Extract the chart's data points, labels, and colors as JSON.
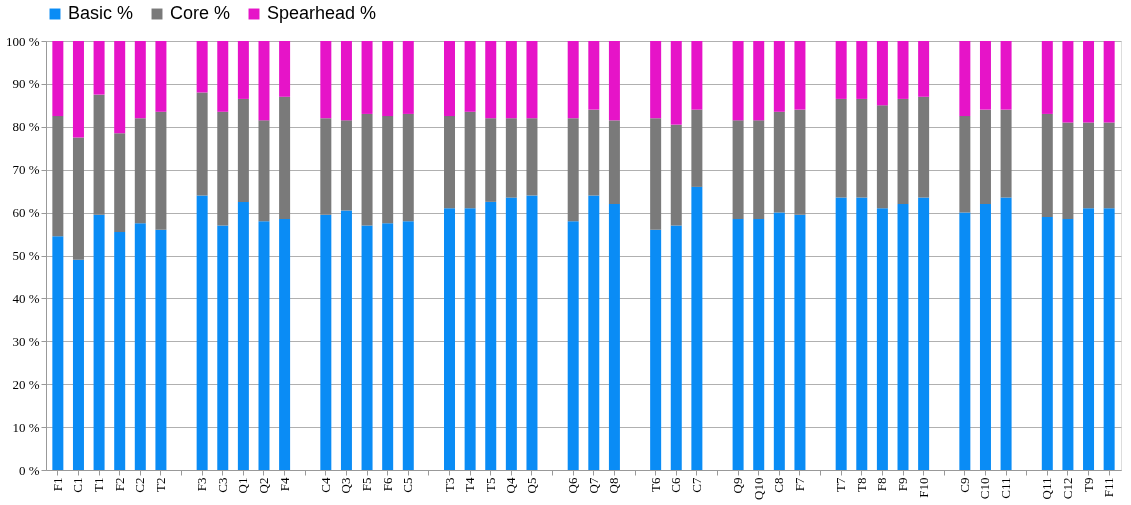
{
  "chart_data": {
    "type": "bar",
    "stacked": true,
    "legend": "top",
    "grid": "y",
    "categories": [
      "F1",
      "C1",
      "T1",
      "F2",
      "C2",
      "T2",
      null,
      "F3",
      "C3",
      "Q1",
      "Q2",
      "F4",
      null,
      "C4",
      "Q3",
      "F5",
      "F6",
      "C5",
      null,
      "T3",
      "T4",
      "T5",
      "Q4",
      "Q5",
      null,
      "Q6",
      "Q7",
      "Q8",
      null,
      "T6",
      "C6",
      "C7",
      null,
      "Q9",
      "Q10",
      "C8",
      "F7",
      null,
      "T7",
      "T8",
      "F8",
      "F9",
      "F10",
      null,
      "C9",
      "C10",
      "C11",
      null,
      "Q11",
      "C12",
      "T9",
      "F11"
    ],
    "series": [
      {
        "name": "Basic %",
        "color": "#0a8cf5",
        "values": [
          54.5,
          49,
          59.5,
          55.5,
          57.5,
          56,
          null,
          64,
          57,
          62.5,
          58,
          58.5,
          null,
          59.5,
          60.5,
          57,
          57.5,
          58,
          null,
          61,
          61,
          62.5,
          63.5,
          64,
          null,
          58,
          64,
          62,
          null,
          56,
          57,
          66,
          null,
          58.5,
          58.5,
          60,
          59.5,
          null,
          63.5,
          63.5,
          61,
          62,
          63.5,
          null,
          60,
          62,
          63.5,
          null,
          59,
          58.5,
          61,
          61
        ]
      },
      {
        "name": "Core %",
        "color": "#7a7a7a",
        "values": [
          28,
          28.5,
          28,
          23,
          24.5,
          27.5,
          null,
          24,
          26.5,
          24,
          23.5,
          28.5,
          null,
          22.5,
          21,
          26,
          25,
          25,
          null,
          21.5,
          22.5,
          19.5,
          18.5,
          18,
          null,
          24,
          20,
          19.5,
          null,
          26,
          23.5,
          18,
          null,
          23,
          23,
          23.5,
          24.5,
          null,
          23,
          23,
          24,
          24.5,
          23.5,
          null,
          22.5,
          22,
          20.5,
          null,
          24,
          22.5,
          20,
          20
        ]
      },
      {
        "name": "Spearhead %",
        "color": "#e614c8",
        "values": [
          17.5,
          22.5,
          12.5,
          21.5,
          18,
          16.5,
          null,
          12,
          16.5,
          13.5,
          18.5,
          13,
          null,
          18,
          18.5,
          17,
          17.5,
          17,
          null,
          17.5,
          16.5,
          18,
          18,
          18,
          null,
          18,
          16,
          18.5,
          null,
          18,
          19.5,
          16,
          null,
          18.5,
          18.5,
          16.5,
          16,
          null,
          13.5,
          13.5,
          15,
          13.5,
          13,
          null,
          17.5,
          16,
          16,
          null,
          17,
          19,
          19,
          19
        ]
      }
    ],
    "ylim": [
      0,
      100
    ],
    "yticks": [
      {
        "value": 0,
        "label": "0 %"
      },
      {
        "value": 10,
        "label": "10 %"
      },
      {
        "value": 20,
        "label": "20 %"
      },
      {
        "value": 30,
        "label": "30 %"
      },
      {
        "value": 40,
        "label": "40 %"
      },
      {
        "value": 50,
        "label": "50 %"
      },
      {
        "value": 60,
        "label": "60 %"
      },
      {
        "value": 70,
        "label": "70 %"
      },
      {
        "value": 80,
        "label": "80 %"
      },
      {
        "value": 90,
        "label": "90 %"
      },
      {
        "value": 100,
        "label": "100 %"
      }
    ]
  }
}
